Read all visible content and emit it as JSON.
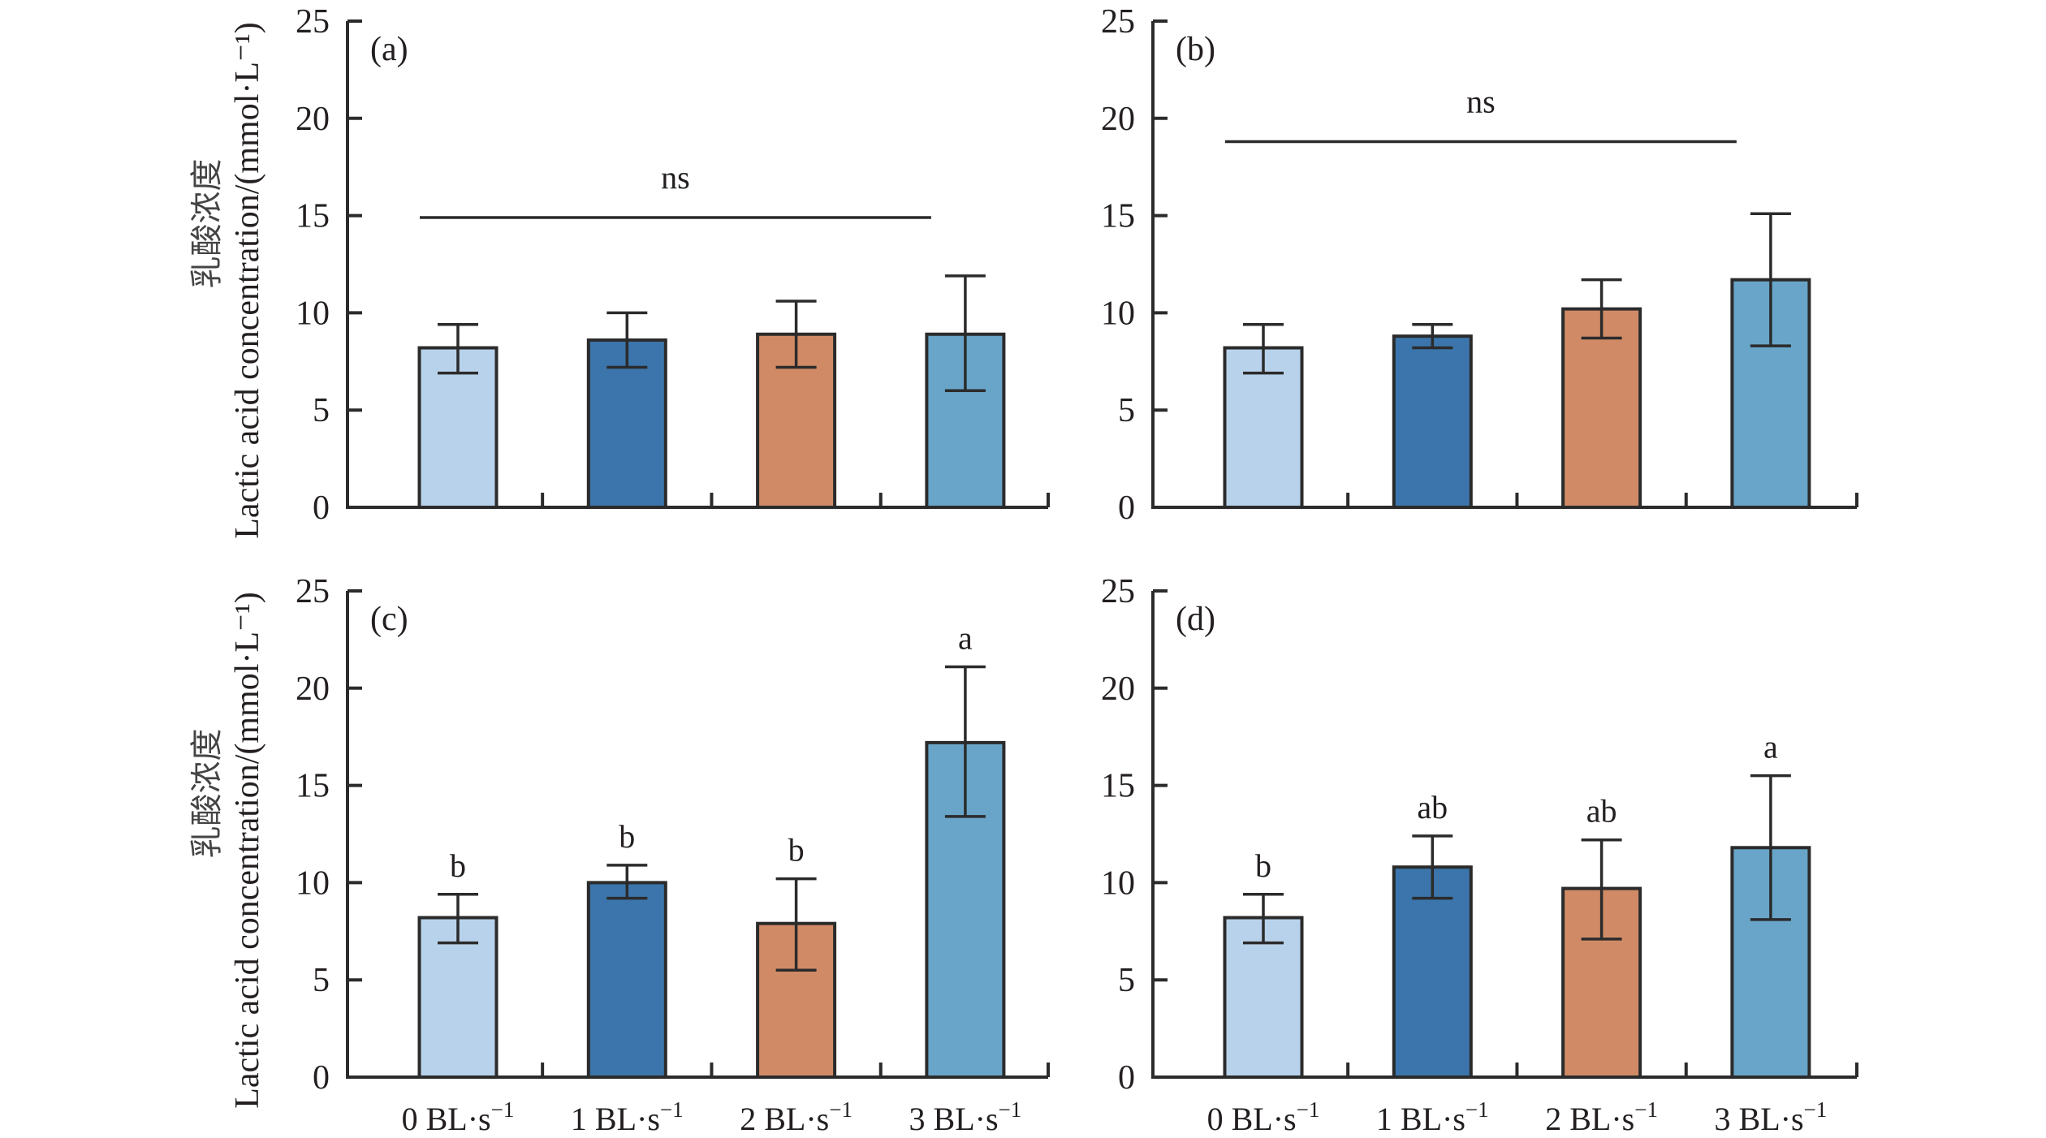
{
  "chart_data": [
    {
      "type": "bar",
      "panel_label": "(a)",
      "categories": [
        "0 BL·s⁻¹",
        "1 BL·s⁻¹",
        "2 BL·s⁻¹",
        "3 BL·s⁻¹"
      ],
      "values": [
        8.2,
        8.6,
        8.9,
        8.9
      ],
      "error_upper": [
        9.4,
        10.0,
        10.6,
        11.9
      ],
      "error_lower": [
        6.9,
        7.2,
        7.2,
        6.0
      ],
      "significance": {
        "type": "bracket",
        "label": "ns",
        "y": 14.9
      },
      "letters": [],
      "ylim": [
        0,
        25
      ],
      "yticks": [
        0,
        5,
        10,
        15,
        20,
        25
      ],
      "ylabel_en": "Lactic acid concentration/(mmol·L⁻¹)",
      "ylabel_cn": "乳酸浓度",
      "show_xticklabels": false
    },
    {
      "type": "bar",
      "panel_label": "(b)",
      "categories": [
        "0 BL·s⁻¹",
        "1 BL·s⁻¹",
        "2 BL·s⁻¹",
        "3 BL·s⁻¹"
      ],
      "values": [
        8.2,
        8.8,
        10.2,
        11.7
      ],
      "error_upper": [
        9.4,
        9.4,
        11.7,
        15.1
      ],
      "error_lower": [
        6.9,
        8.2,
        8.7,
        8.3
      ],
      "significance": {
        "type": "bracket",
        "label": "ns",
        "y": 18.8
      },
      "letters": [],
      "ylim": [
        0,
        25
      ],
      "yticks": [
        0,
        5,
        10,
        15,
        20,
        25
      ],
      "ylabel_en": "",
      "ylabel_cn": "",
      "show_xticklabels": false
    },
    {
      "type": "bar",
      "panel_label": "(c)",
      "categories": [
        "0 BL·s⁻¹",
        "1 BL·s⁻¹",
        "2 BL·s⁻¹",
        "3 BL·s⁻¹"
      ],
      "values": [
        8.2,
        10.0,
        7.9,
        17.2
      ],
      "error_upper": [
        9.4,
        10.9,
        10.2,
        21.1
      ],
      "error_lower": [
        6.9,
        9.2,
        5.5,
        13.4
      ],
      "significance": null,
      "letters": [
        "b",
        "b",
        "b",
        "a"
      ],
      "ylim": [
        0,
        25
      ],
      "yticks": [
        0,
        5,
        10,
        15,
        20,
        25
      ],
      "ylabel_en": "Lactic acid concentration/(mmol·L⁻¹)",
      "ylabel_cn": "乳酸浓度",
      "show_xticklabels": true
    },
    {
      "type": "bar",
      "panel_label": "(d)",
      "categories": [
        "0 BL·s⁻¹",
        "1 BL·s⁻¹",
        "2 BL·s⁻¹",
        "3 BL·s⁻¹"
      ],
      "values": [
        8.2,
        10.8,
        9.7,
        11.8
      ],
      "error_upper": [
        9.4,
        12.4,
        12.2,
        15.5
      ],
      "error_lower": [
        6.9,
        9.2,
        7.1,
        8.1
      ],
      "significance": null,
      "letters": [
        "b",
        "ab",
        "ab",
        "a"
      ],
      "ylim": [
        0,
        25
      ],
      "yticks": [
        0,
        5,
        10,
        15,
        20,
        25
      ],
      "ylabel_en": "",
      "ylabel_cn": "",
      "show_xticklabels": true
    }
  ],
  "colors": {
    "bar_fills": [
      "#b8d2eb",
      "#3b75ab",
      "#d08b66",
      "#68a5c9"
    ],
    "edge": "#2b2b2b",
    "text": "#231f20"
  }
}
